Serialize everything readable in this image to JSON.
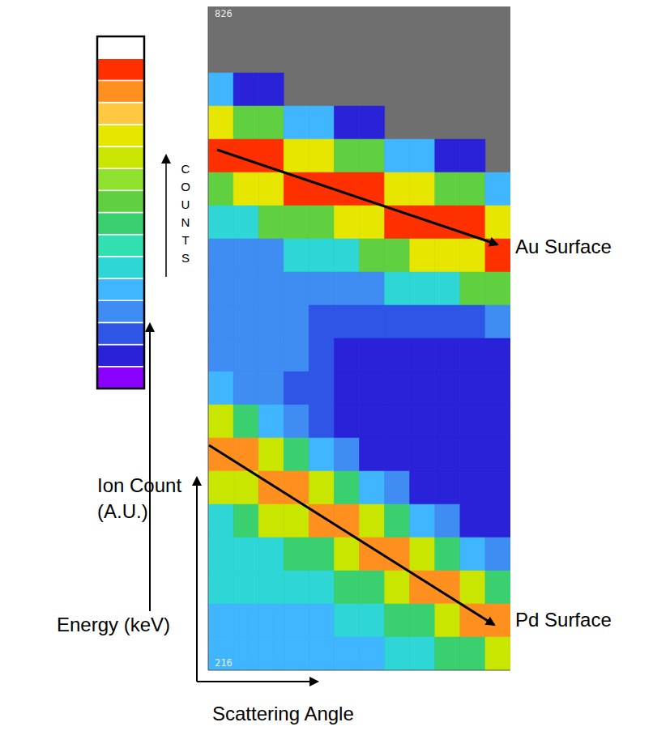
{
  "chart_data": {
    "type": "heatmap",
    "xlabel": "Scattering Angle",
    "ylabel": "Energy (keV)",
    "xlim": [
      0,
      12
    ],
    "ylim": [
      216,
      826
    ],
    "yticks": [
      216,
      826
    ],
    "tick_labels": "y",
    "x_bins": [
      0,
      1,
      2,
      3,
      4,
      5,
      6,
      7,
      8,
      9,
      10,
      11,
      12
    ],
    "y_bins": [
      826,
      795.5,
      765,
      734.5,
      704,
      673.5,
      643,
      612.5,
      582,
      551.5,
      521,
      490.5,
      460,
      429.5,
      399,
      368.5,
      338,
      307.5,
      277,
      246.5,
      216
    ],
    "cells": [
      [
        0,
        0,
        0,
        0,
        0,
        0,
        0,
        0,
        0,
        0,
        0,
        0
      ],
      [
        0,
        0,
        0,
        0,
        0,
        0,
        0,
        0,
        0,
        0,
        0,
        0
      ],
      [
        5,
        2,
        2,
        0,
        0,
        0,
        0,
        0,
        0,
        0,
        0,
        0
      ],
      [
        12,
        9,
        9,
        5,
        5,
        2,
        2,
        0,
        0,
        0,
        0,
        0
      ],
      [
        15,
        15,
        15,
        12,
        12,
        9,
        9,
        5,
        5,
        2,
        2,
        0
      ],
      [
        9,
        12,
        12,
        15,
        15,
        15,
        15,
        12,
        12,
        9,
        9,
        5
      ],
      [
        6,
        6,
        9,
        9,
        9,
        12,
        12,
        15,
        15,
        15,
        15,
        12
      ],
      [
        4,
        4,
        4,
        6,
        6,
        6,
        9,
        9,
        12,
        12,
        12,
        15
      ],
      [
        4,
        4,
        4,
        4,
        4,
        4,
        4,
        6,
        6,
        6,
        9,
        9
      ],
      [
        4,
        4,
        4,
        4,
        3,
        3,
        3,
        3,
        3,
        3,
        3,
        4
      ],
      [
        4,
        4,
        4,
        4,
        3,
        2,
        2,
        2,
        2,
        2,
        2,
        2
      ],
      [
        5,
        4,
        4,
        3,
        3,
        2,
        2,
        2,
        2,
        2,
        2,
        2
      ],
      [
        11,
        8,
        5,
        4,
        3,
        2,
        2,
        2,
        2,
        2,
        2,
        2
      ],
      [
        14,
        14,
        11,
        8,
        5,
        4,
        2,
        2,
        2,
        2,
        2,
        2
      ],
      [
        11,
        11,
        14,
        14,
        11,
        8,
        5,
        4,
        2,
        2,
        2,
        2
      ],
      [
        6,
        8,
        11,
        11,
        14,
        14,
        11,
        8,
        5,
        4,
        2,
        2
      ],
      [
        6,
        6,
        6,
        8,
        8,
        11,
        14,
        14,
        11,
        8,
        5,
        4
      ],
      [
        6,
        6,
        6,
        6,
        6,
        8,
        8,
        11,
        14,
        14,
        11,
        8
      ],
      [
        5,
        5,
        5,
        5,
        5,
        6,
        6,
        8,
        8,
        11,
        14,
        14
      ],
      [
        5,
        5,
        5,
        5,
        5,
        5,
        5,
        6,
        6,
        8,
        8,
        11
      ]
    ],
    "colorbar": {
      "title": "COUNTS",
      "label": "Ion Count (A.U.)",
      "range": [
        1,
        16
      ],
      "colors": [
        "#8a00ff",
        "#2a22d8",
        "#2f55e6",
        "#3f8cf2",
        "#3fb6ff",
        "#2fd6d6",
        "#30e0b0",
        "#3ad070",
        "#60d040",
        "#90e030",
        "#c8e600",
        "#e6e600",
        "#ffc840",
        "#ff9020",
        "#ff3000",
        "#ffffff"
      ]
    },
    "annotations": [
      {
        "text": "Au Surface"
      },
      {
        "text": "Pd Surface"
      }
    ]
  }
}
